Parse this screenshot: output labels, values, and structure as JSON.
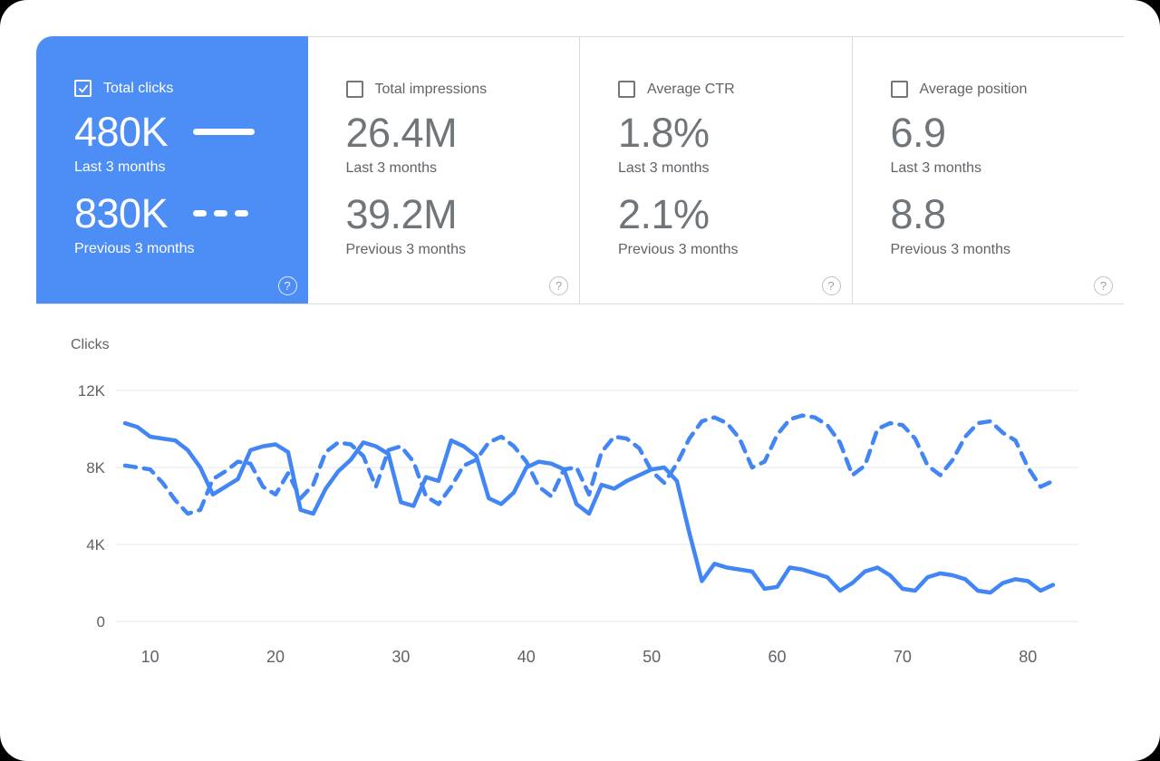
{
  "colors": {
    "accent": "#4285f4",
    "selected_card_bg": "#4d8df6",
    "grid": "#e4e7ea",
    "label_gray": "#5f6368",
    "value_gray": "#70757a"
  },
  "icons": {
    "help": "?"
  },
  "cards": [
    {
      "label": "Total clicks",
      "checked": true,
      "selected": true,
      "primary_value": "480K",
      "primary_label": "Last 3 months",
      "secondary_value": "830K",
      "secondary_label": "Previous 3 months"
    },
    {
      "label": "Total impressions",
      "checked": false,
      "selected": false,
      "primary_value": "26.4M",
      "primary_label": "Last 3 months",
      "secondary_value": "39.2M",
      "secondary_label": "Previous 3 months"
    },
    {
      "label": "Average CTR",
      "checked": false,
      "selected": false,
      "primary_value": "1.8%",
      "primary_label": "Last 3 months",
      "secondary_value": "2.1%",
      "secondary_label": "Previous 3 months"
    },
    {
      "label": "Average position",
      "checked": false,
      "selected": false,
      "primary_value": "6.9",
      "primary_label": "Last 3 months",
      "secondary_value": "8.8",
      "secondary_label": "Previous 3 months"
    }
  ],
  "chart_data": {
    "type": "line",
    "title": "Clicks",
    "ylabel": "Clicks",
    "xlim": [
      8,
      82
    ],
    "ylim": [
      0,
      12000
    ],
    "grid": true,
    "legend_position": "in-card",
    "x_ticks": [
      10,
      20,
      30,
      40,
      50,
      60,
      70,
      80
    ],
    "y_ticks": [
      {
        "value": 12000,
        "label": "12K"
      },
      {
        "value": 8000,
        "label": "8K"
      },
      {
        "value": 4000,
        "label": "4K"
      },
      {
        "value": 0,
        "label": "0"
      }
    ],
    "x": [
      8,
      9,
      10,
      11,
      12,
      13,
      14,
      15,
      16,
      17,
      18,
      19,
      20,
      21,
      22,
      23,
      24,
      25,
      26,
      27,
      28,
      29,
      30,
      31,
      32,
      33,
      34,
      35,
      36,
      37,
      38,
      39,
      40,
      41,
      42,
      43,
      44,
      45,
      46,
      47,
      48,
      49,
      50,
      51,
      52,
      53,
      54,
      55,
      56,
      57,
      58,
      59,
      60,
      61,
      62,
      63,
      64,
      65,
      66,
      67,
      68,
      69,
      70,
      71,
      72,
      73,
      74,
      75,
      76,
      77,
      78,
      79,
      80,
      81,
      82
    ],
    "series": [
      {
        "name": "Previous 3 months",
        "style": "dashed",
        "color": "#4285f4",
        "values": [
          8100,
          8000,
          7900,
          7200,
          6300,
          5600,
          5800,
          7400,
          7800,
          8300,
          8200,
          7000,
          6600,
          7700,
          6400,
          7100,
          8800,
          9300,
          9200,
          8600,
          7000,
          8900,
          9100,
          8300,
          6500,
          6100,
          7000,
          8100,
          8400,
          9300,
          9600,
          9100,
          8300,
          7000,
          6500,
          7900,
          8000,
          6600,
          8800,
          9600,
          9500,
          9000,
          7800,
          7200,
          8200,
          9500,
          10400,
          10600,
          10300,
          9500,
          8000,
          8300,
          9700,
          10500,
          10700,
          10600,
          10200,
          9300,
          7600,
          8100,
          10000,
          10300,
          10200,
          9500,
          8100,
          7600,
          8400,
          9600,
          10300,
          10400,
          9800,
          9400,
          8000,
          7000,
          7300
        ]
      },
      {
        "name": "Last 3 months",
        "style": "solid",
        "color": "#4285f4",
        "values": [
          10300,
          10100,
          9600,
          9500,
          9400,
          8900,
          8000,
          6600,
          7000,
          7400,
          8900,
          9100,
          9200,
          8800,
          5800,
          5600,
          6900,
          7800,
          8400,
          9300,
          9100,
          8700,
          6200,
          6000,
          7500,
          7300,
          9400,
          9100,
          8600,
          6400,
          6100,
          6700,
          8000,
          8300,
          8200,
          7900,
          6100,
          5600,
          7100,
          6900,
          7300,
          7600,
          7900,
          8000,
          7300,
          4600,
          2100,
          3000,
          2800,
          2700,
          2600,
          1700,
          1800,
          2800,
          2700,
          2500,
          2300,
          1600,
          2000,
          2600,
          2800,
          2400,
          1700,
          1600,
          2300,
          2500,
          2400,
          2200,
          1600,
          1500,
          2000,
          2200,
          2100,
          1600,
          1900
        ]
      }
    ]
  }
}
